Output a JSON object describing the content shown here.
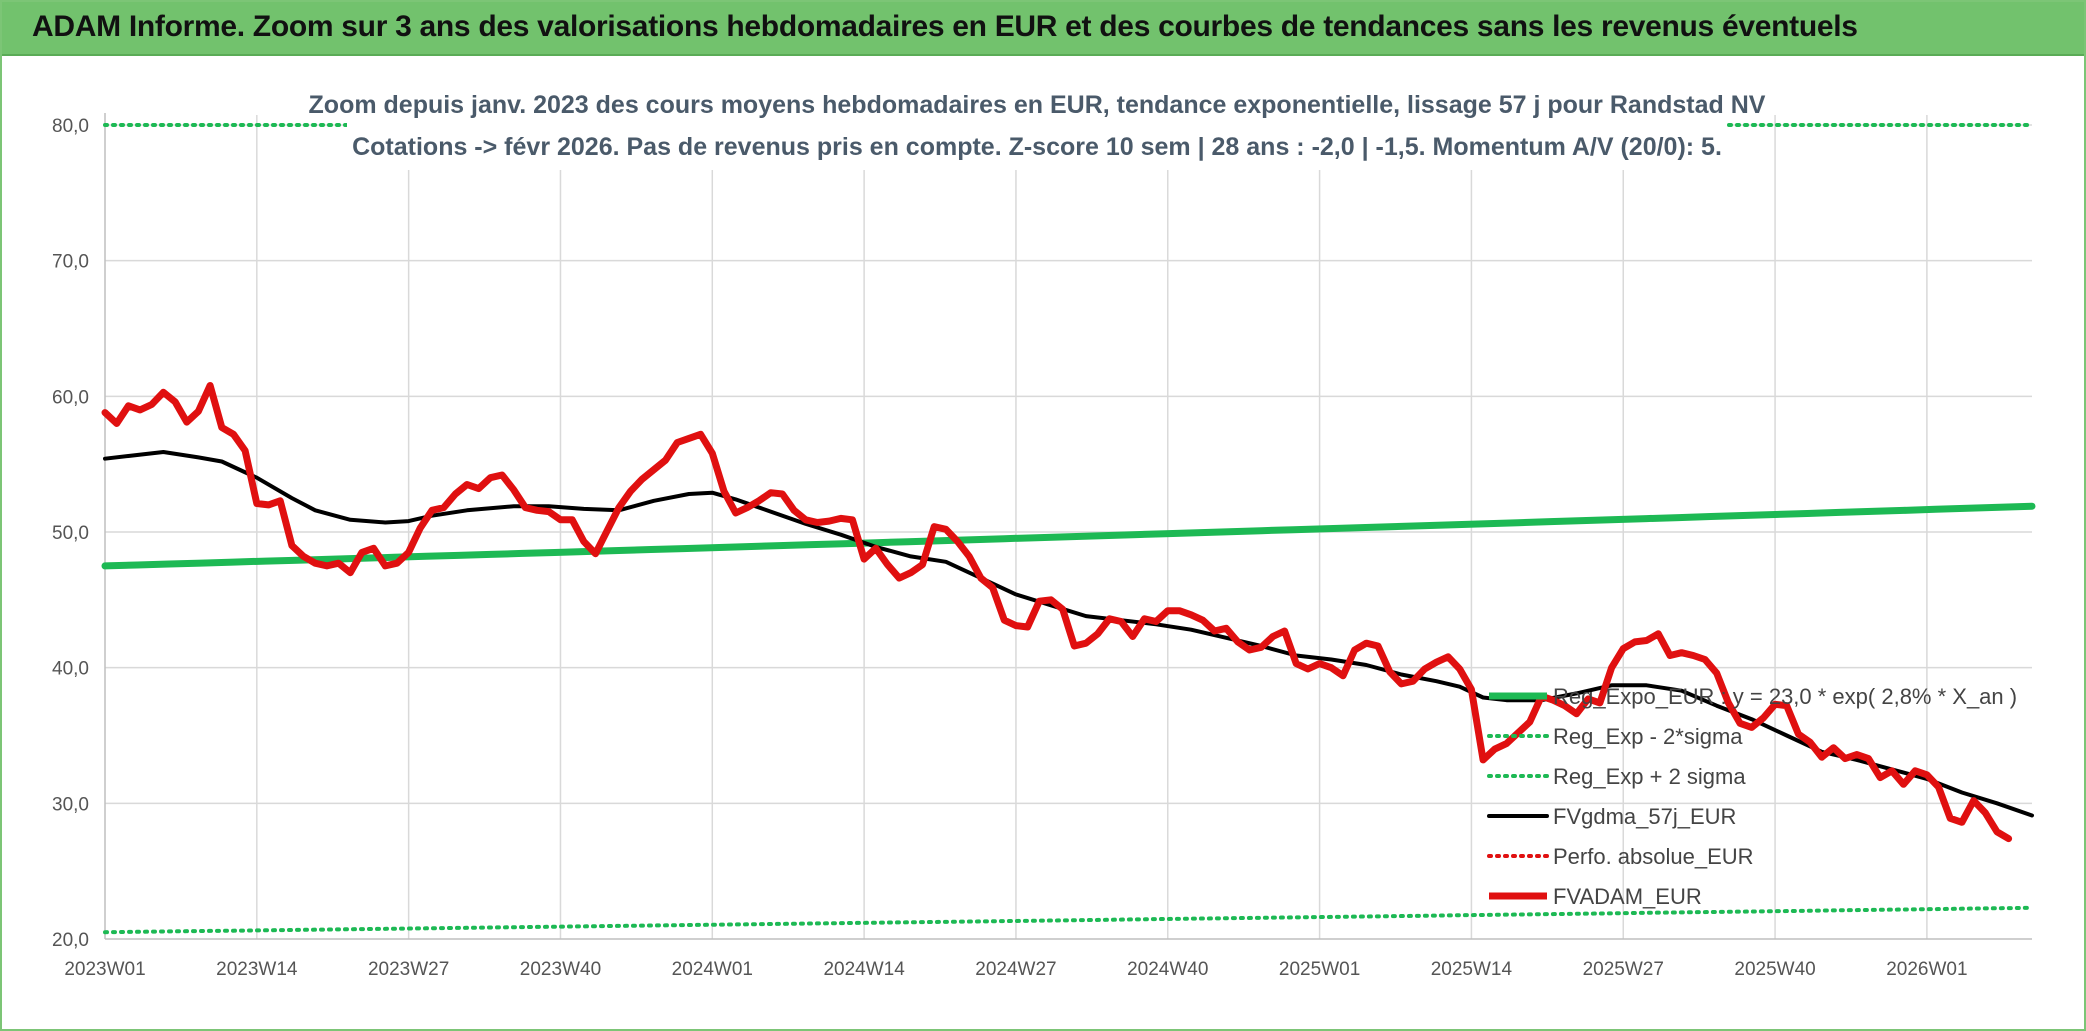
{
  "header": {
    "title": "ADAM Informe. Zoom sur 3 ans des valorisations hebdomadaires en EUR et des courbes de tendances sans les revenus éventuels"
  },
  "colors": {
    "header_bg": "#72c26d",
    "trend_green": "#1db954",
    "price_red": "#e01010",
    "ma_black": "#000000",
    "grid": "#d9d9d9"
  },
  "chart_data": {
    "type": "line",
    "title_lines": [
      "Zoom depuis janv. 2023 des cours moyens hebdomadaires en EUR, tendance exponentielle, lissage 57 j pour Randstad NV",
      "Cotations -> févr 2026. Pas de revenus pris en compte. Z-score 10 sem | 28 ans : -2,0 | -1,5. Momentum A/V (20/0): 5."
    ],
    "ylim": [
      20,
      80
    ],
    "y_ticks": [
      "20,0",
      "30,0",
      "40,0",
      "50,0",
      "60,0",
      "70,0",
      "80,0"
    ],
    "y_tick_values": [
      20,
      30,
      40,
      50,
      60,
      70,
      80
    ],
    "x_ticks": [
      "2023W01",
      "2023W14",
      "2023W27",
      "2023W40",
      "2024W01",
      "2024W14",
      "2024W27",
      "2024W40",
      "2025W01",
      "2025W14",
      "2025W27",
      "2025W40",
      "2026W01"
    ],
    "x_tick_weeks": [
      0,
      13,
      26,
      39,
      52,
      65,
      78,
      91,
      104,
      117,
      130,
      143,
      156
    ],
    "x_range_weeks": [
      0,
      165
    ],
    "legend_position": "bottom-right",
    "series": [
      {
        "name": "Reg_Expo_EUR : y = 23,0 * exp( 2,8% *  X_an )",
        "style": "thick",
        "color": "#1db954",
        "from_week": 0,
        "to_week": 165,
        "start": 47.5,
        "end": 51.9
      },
      {
        "name": "Reg_Exp - 2*sigma",
        "style": "dotted",
        "color": "#1db954",
        "from_week": 0,
        "to_week": 165,
        "start": 20.5,
        "end": 22.3
      },
      {
        "name": "Reg_Exp + 2 sigma",
        "style": "dotted",
        "color": "#1db954",
        "from_week": 0,
        "to_week": 165,
        "start": 80.0,
        "end": 80.0
      },
      {
        "name": "FVgdma_57j_EUR",
        "style": "solid",
        "color": "#000000",
        "points": [
          [
            0,
            55.4
          ],
          [
            2,
            55.6
          ],
          [
            5,
            55.9
          ],
          [
            8,
            55.5
          ],
          [
            10,
            55.2
          ],
          [
            13,
            54.0
          ],
          [
            16,
            52.5
          ],
          [
            18,
            51.6
          ],
          [
            21,
            50.9
          ],
          [
            24,
            50.7
          ],
          [
            26,
            50.8
          ],
          [
            28,
            51.2
          ],
          [
            31,
            51.6
          ],
          [
            35,
            51.9
          ],
          [
            38,
            51.9
          ],
          [
            41,
            51.7
          ],
          [
            44,
            51.6
          ],
          [
            47,
            52.3
          ],
          [
            50,
            52.8
          ],
          [
            52,
            52.9
          ],
          [
            54,
            52.4
          ],
          [
            57,
            51.5
          ],
          [
            60,
            50.6
          ],
          [
            63,
            49.8
          ],
          [
            66,
            48.9
          ],
          [
            69,
            48.2
          ],
          [
            72,
            47.8
          ],
          [
            75,
            46.6
          ],
          [
            78,
            45.4
          ],
          [
            81,
            44.6
          ],
          [
            84,
            43.8
          ],
          [
            87,
            43.5
          ],
          [
            90,
            43.2
          ],
          [
            93,
            42.8
          ],
          [
            96,
            42.2
          ],
          [
            99,
            41.6
          ],
          [
            102,
            40.9
          ],
          [
            105,
            40.6
          ],
          [
            108,
            40.2
          ],
          [
            111,
            39.5
          ],
          [
            114,
            39.0
          ],
          [
            116,
            38.6
          ],
          [
            118,
            37.8
          ],
          [
            120,
            37.6
          ],
          [
            123,
            37.6
          ],
          [
            126,
            38.1
          ],
          [
            129,
            38.7
          ],
          [
            132,
            38.7
          ],
          [
            135,
            38.3
          ],
          [
            138,
            37.2
          ],
          [
            141,
            36.2
          ],
          [
            144,
            35.0
          ],
          [
            147,
            33.8
          ],
          [
            150,
            33.2
          ],
          [
            153,
            32.5
          ],
          [
            156,
            31.8
          ],
          [
            159,
            30.8
          ],
          [
            162,
            30.0
          ],
          [
            165,
            29.1
          ]
        ]
      },
      {
        "name": "Perfo. absolue_EUR",
        "style": "dotted",
        "color": "#e01010"
      },
      {
        "name": "FVADAM_EUR",
        "style": "thick",
        "color": "#e01010",
        "points": [
          [
            0,
            58.8
          ],
          [
            1,
            58.0
          ],
          [
            2,
            59.3
          ],
          [
            3,
            59.0
          ],
          [
            4,
            59.4
          ],
          [
            5,
            60.3
          ],
          [
            6,
            59.6
          ],
          [
            7,
            58.1
          ],
          [
            8,
            58.9
          ],
          [
            9,
            60.8
          ],
          [
            10,
            57.7
          ],
          [
            11,
            57.2
          ],
          [
            12,
            56.0
          ],
          [
            13,
            52.1
          ],
          [
            14,
            52.0
          ],
          [
            15,
            52.3
          ],
          [
            16,
            49.0
          ],
          [
            17,
            48.2
          ],
          [
            18,
            47.7
          ],
          [
            19,
            47.5
          ],
          [
            20,
            47.7
          ],
          [
            21,
            47.0
          ],
          [
            22,
            48.5
          ],
          [
            23,
            48.8
          ],
          [
            24,
            47.5
          ],
          [
            25,
            47.7
          ],
          [
            26,
            48.5
          ],
          [
            27,
            50.3
          ],
          [
            28,
            51.6
          ],
          [
            29,
            51.8
          ],
          [
            30,
            52.8
          ],
          [
            31,
            53.5
          ],
          [
            32,
            53.2
          ],
          [
            33,
            54.0
          ],
          [
            34,
            54.2
          ],
          [
            35,
            53.1
          ],
          [
            36,
            51.8
          ],
          [
            37,
            51.6
          ],
          [
            38,
            51.5
          ],
          [
            39,
            50.9
          ],
          [
            40,
            50.9
          ],
          [
            41,
            49.3
          ],
          [
            42,
            48.4
          ],
          [
            43,
            50.1
          ],
          [
            44,
            51.8
          ],
          [
            45,
            53.0
          ],
          [
            46,
            53.9
          ],
          [
            47,
            54.6
          ],
          [
            48,
            55.3
          ],
          [
            49,
            56.6
          ],
          [
            50,
            56.9
          ],
          [
            51,
            57.2
          ],
          [
            52,
            55.8
          ],
          [
            53,
            53.0
          ],
          [
            54,
            51.4
          ],
          [
            55,
            51.8
          ],
          [
            56,
            52.3
          ],
          [
            57,
            52.9
          ],
          [
            58,
            52.8
          ],
          [
            59,
            51.6
          ],
          [
            60,
            50.9
          ],
          [
            61,
            50.7
          ],
          [
            62,
            50.8
          ],
          [
            63,
            51.0
          ],
          [
            64,
            50.9
          ],
          [
            65,
            48.0
          ],
          [
            66,
            48.8
          ],
          [
            67,
            47.6
          ],
          [
            68,
            46.6
          ],
          [
            69,
            47.0
          ],
          [
            70,
            47.6
          ],
          [
            71,
            50.4
          ],
          [
            72,
            50.2
          ],
          [
            73,
            49.3
          ],
          [
            74,
            48.2
          ],
          [
            75,
            46.6
          ],
          [
            76,
            45.9
          ],
          [
            77,
            43.5
          ],
          [
            78,
            43.1
          ],
          [
            79,
            43.0
          ],
          [
            80,
            44.9
          ],
          [
            81,
            45.0
          ],
          [
            82,
            44.3
          ],
          [
            83,
            41.6
          ],
          [
            84,
            41.8
          ],
          [
            85,
            42.5
          ],
          [
            86,
            43.6
          ],
          [
            87,
            43.4
          ],
          [
            88,
            42.3
          ],
          [
            89,
            43.6
          ],
          [
            90,
            43.4
          ],
          [
            91,
            44.2
          ],
          [
            92,
            44.2
          ],
          [
            93,
            43.9
          ],
          [
            94,
            43.5
          ],
          [
            95,
            42.7
          ],
          [
            96,
            42.9
          ],
          [
            97,
            41.9
          ],
          [
            98,
            41.3
          ],
          [
            99,
            41.5
          ],
          [
            100,
            42.3
          ],
          [
            101,
            42.7
          ],
          [
            102,
            40.3
          ],
          [
            103,
            39.9
          ],
          [
            104,
            40.3
          ],
          [
            105,
            40.0
          ],
          [
            106,
            39.4
          ],
          [
            107,
            41.3
          ],
          [
            108,
            41.8
          ],
          [
            109,
            41.6
          ],
          [
            110,
            39.7
          ],
          [
            111,
            38.8
          ],
          [
            112,
            39.0
          ],
          [
            113,
            39.9
          ],
          [
            114,
            40.4
          ],
          [
            115,
            40.8
          ],
          [
            116,
            39.9
          ],
          [
            117,
            38.4
          ],
          [
            118,
            33.2
          ],
          [
            119,
            34.0
          ],
          [
            120,
            34.4
          ],
          [
            121,
            35.2
          ],
          [
            122,
            36.0
          ],
          [
            123,
            37.9
          ],
          [
            124,
            37.6
          ],
          [
            125,
            37.2
          ],
          [
            126,
            36.6
          ],
          [
            127,
            37.7
          ],
          [
            128,
            37.4
          ],
          [
            129,
            40.0
          ],
          [
            130,
            41.4
          ],
          [
            131,
            41.9
          ],
          [
            132,
            42.0
          ],
          [
            133,
            42.5
          ],
          [
            134,
            40.9
          ],
          [
            135,
            41.1
          ],
          [
            136,
            40.9
          ],
          [
            137,
            40.6
          ],
          [
            138,
            39.6
          ],
          [
            139,
            37.4
          ],
          [
            140,
            35.9
          ],
          [
            141,
            35.6
          ],
          [
            142,
            36.3
          ],
          [
            143,
            37.3
          ],
          [
            144,
            37.2
          ],
          [
            145,
            35.1
          ],
          [
            146,
            34.5
          ],
          [
            147,
            33.4
          ],
          [
            148,
            34.1
          ],
          [
            149,
            33.3
          ],
          [
            150,
            33.6
          ],
          [
            151,
            33.3
          ],
          [
            152,
            31.9
          ],
          [
            153,
            32.4
          ],
          [
            154,
            31.4
          ],
          [
            155,
            32.4
          ],
          [
            156,
            32.1
          ],
          [
            157,
            31.2
          ],
          [
            158,
            28.9
          ],
          [
            159,
            28.6
          ],
          [
            160,
            30.2
          ],
          [
            161,
            29.3
          ],
          [
            162,
            27.9
          ],
          [
            163,
            27.4
          ]
        ]
      }
    ]
  }
}
